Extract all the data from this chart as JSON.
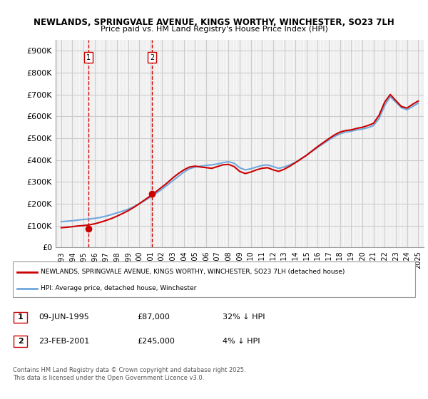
{
  "title_line1": "NEWLANDS, SPRINGVALE AVENUE, KINGS WORTHY, WINCHESTER, SO23 7LH",
  "title_line2": "Price paid vs. HM Land Registry's House Price Index (HPI)",
  "ylabel": "",
  "xlabel": "",
  "ylim": [
    0,
    950000
  ],
  "yticks": [
    0,
    100000,
    200000,
    300000,
    400000,
    500000,
    600000,
    700000,
    800000,
    900000
  ],
  "ytick_labels": [
    "£0",
    "£100K",
    "£200K",
    "£300K",
    "£400K",
    "£500K",
    "£600K",
    "£700K",
    "£800K",
    "£900K"
  ],
  "xlim_start": 1992.5,
  "xlim_end": 2025.5,
  "xticks": [
    1993,
    1994,
    1995,
    1996,
    1997,
    1998,
    1999,
    2000,
    2001,
    2002,
    2003,
    2004,
    2005,
    2006,
    2007,
    2008,
    2009,
    2010,
    2011,
    2012,
    2013,
    2014,
    2015,
    2016,
    2017,
    2018,
    2019,
    2020,
    2021,
    2022,
    2023,
    2024,
    2025
  ],
  "hpi_color": "#6fa8dc",
  "price_color": "#cc0000",
  "vline_color": "#cc0000",
  "grid_color": "#cccccc",
  "bg_color": "#ffffff",
  "plot_bg_color": "#f0f0f0",
  "marker_color": "#cc0000",
  "sale1_year": 1995.44,
  "sale1_price": 87000,
  "sale1_label": "1",
  "sale2_year": 2001.14,
  "sale2_price": 245000,
  "sale2_label": "2",
  "legend_line1": "NEWLANDS, SPRINGVALE AVENUE, KINGS WORTHY, WINCHESTER, SO23 7LH (detached house)",
  "legend_line2": "HPI: Average price, detached house, Winchester",
  "table_row1": [
    "1",
    "09-JUN-1995",
    "£87,000",
    "32% ↓ HPI"
  ],
  "table_row2": [
    "2",
    "23-FEB-2001",
    "£245,000",
    "4% ↓ HPI"
  ],
  "footnote": "Contains HM Land Registry data © Crown copyright and database right 2025.\nThis data is licensed under the Open Government Licence v3.0.",
  "hpi_data_years": [
    1993,
    1993.5,
    1994,
    1994.5,
    1995,
    1995.5,
    1996,
    1996.5,
    1997,
    1997.5,
    1998,
    1998.5,
    1999,
    1999.5,
    2000,
    2000.5,
    2001,
    2001.5,
    2002,
    2002.5,
    2003,
    2003.5,
    2004,
    2004.5,
    2005,
    2005.5,
    2006,
    2006.5,
    2007,
    2007.5,
    2008,
    2008.5,
    2009,
    2009.5,
    2010,
    2010.5,
    2011,
    2011.5,
    2012,
    2012.5,
    2013,
    2013.5,
    2014,
    2014.5,
    2015,
    2015.5,
    2016,
    2016.5,
    2017,
    2017.5,
    2018,
    2018.5,
    2019,
    2019.5,
    2020,
    2020.5,
    2021,
    2021.5,
    2022,
    2022.5,
    2023,
    2023.5,
    2024,
    2024.5,
    2025
  ],
  "hpi_values": [
    118000,
    120000,
    122000,
    125000,
    128000,
    130000,
    133000,
    137000,
    143000,
    150000,
    158000,
    166000,
    175000,
    186000,
    200000,
    215000,
    230000,
    248000,
    265000,
    285000,
    305000,
    325000,
    345000,
    360000,
    368000,
    372000,
    375000,
    378000,
    382000,
    388000,
    392000,
    385000,
    365000,
    355000,
    360000,
    368000,
    375000,
    378000,
    370000,
    362000,
    368000,
    378000,
    390000,
    405000,
    422000,
    440000,
    458000,
    475000,
    492000,
    508000,
    520000,
    528000,
    532000,
    538000,
    542000,
    548000,
    558000,
    590000,
    650000,
    690000,
    665000,
    640000,
    630000,
    645000,
    660000
  ],
  "price_data_years": [
    1993,
    1993.5,
    1994,
    1994.5,
    1995,
    1995.5,
    1996,
    1996.5,
    1997,
    1997.5,
    1998,
    1998.5,
    1999,
    1999.5,
    2000,
    2000.5,
    2001,
    2001.5,
    2002,
    2002.5,
    2003,
    2003.5,
    2004,
    2004.5,
    2005,
    2005.5,
    2006,
    2006.5,
    2007,
    2007.5,
    2008,
    2008.5,
    2009,
    2009.5,
    2010,
    2010.5,
    2011,
    2011.5,
    2012,
    2012.5,
    2013,
    2013.5,
    2014,
    2014.5,
    2015,
    2015.5,
    2016,
    2016.5,
    2017,
    2017.5,
    2018,
    2018.5,
    2019,
    2019.5,
    2020,
    2020.5,
    2021,
    2021.5,
    2022,
    2022.5,
    2023,
    2023.5,
    2024,
    2024.5,
    2025
  ],
  "price_values": [
    90000,
    92000,
    95000,
    98000,
    100000,
    103000,
    108000,
    115000,
    123000,
    132000,
    143000,
    155000,
    168000,
    183000,
    200000,
    218000,
    236000,
    255000,
    275000,
    295000,
    318000,
    338000,
    355000,
    368000,
    372000,
    368000,
    365000,
    362000,
    370000,
    378000,
    380000,
    370000,
    348000,
    338000,
    345000,
    355000,
    362000,
    365000,
    355000,
    348000,
    358000,
    372000,
    388000,
    405000,
    422000,
    442000,
    462000,
    480000,
    498000,
    515000,
    528000,
    535000,
    538000,
    545000,
    550000,
    558000,
    568000,
    605000,
    665000,
    700000,
    672000,
    645000,
    638000,
    655000,
    670000
  ]
}
